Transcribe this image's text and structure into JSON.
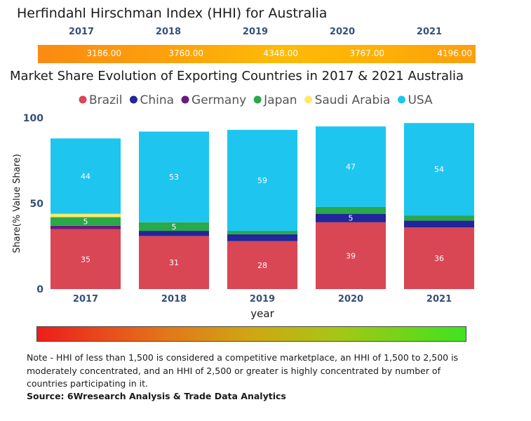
{
  "hhi": {
    "title": "Herfindahl Hirschman Index (HHI) for Australia",
    "years": [
      "2017",
      "2018",
      "2019",
      "2020",
      "2021"
    ],
    "values": [
      "3186.00",
      "3760.00",
      "4348.00",
      "3767.00",
      "4196.00"
    ]
  },
  "chart_data": {
    "type": "bar",
    "stacked": true,
    "title": "Market Share Evolution of Exporting Countries in 2017 & 2021 Australia",
    "xlabel": "year",
    "ylabel": "Share(% Value Share)",
    "categories": [
      "2017",
      "2018",
      "2019",
      "2020",
      "2021"
    ],
    "ylim": [
      0,
      100
    ],
    "yticks": [
      "0",
      "50",
      "100"
    ],
    "legend_position": "top",
    "series": [
      {
        "name": "Brazil",
        "color": "#d94654",
        "values": [
          35,
          31,
          28,
          39,
          36
        ],
        "labels": [
          "35",
          "31",
          "28",
          "39",
          "36"
        ]
      },
      {
        "name": "China",
        "color": "#23259a",
        "values": [
          0,
          3,
          4,
          5,
          4
        ],
        "labels": [
          "",
          "",
          "",
          "5",
          ""
        ]
      },
      {
        "name": "Germany",
        "color": "#6a1a7a",
        "values": [
          2,
          0,
          0,
          0,
          0
        ],
        "labels": [
          "",
          "",
          "",
          "",
          ""
        ]
      },
      {
        "name": "Japan",
        "color": "#2aa84a",
        "values": [
          5,
          5,
          2,
          4,
          3
        ],
        "labels": [
          "5",
          "5",
          "",
          "",
          ""
        ]
      },
      {
        "name": "Saudi Arabia",
        "color": "#fbe96a",
        "values": [
          2,
          0,
          0,
          0,
          0
        ],
        "labels": [
          "",
          "",
          "",
          "",
          ""
        ]
      },
      {
        "name": "USA",
        "color": "#1ec5ef",
        "values": [
          44,
          53,
          59,
          47,
          54
        ],
        "labels": [
          "44",
          "53",
          "59",
          "47",
          "54"
        ]
      }
    ]
  },
  "note": "Note - HHI of less than 1,500 is considered a competitive marketplace, an HHI of 1,500 to 2,500 is moderately concentrated, and an HHI of 2,500 or greater is highly concentrated by number of countries participating in it.",
  "source": "Source: 6Wresearch Analysis & Trade Data Analytics"
}
